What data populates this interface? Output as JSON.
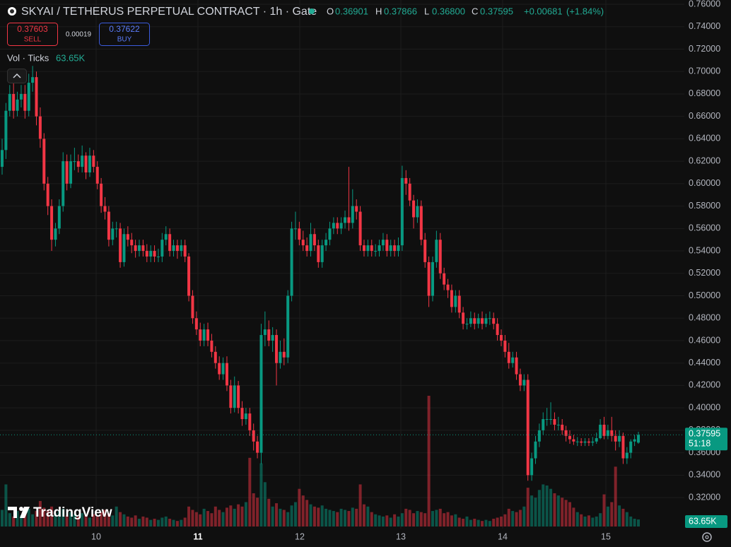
{
  "chart_data": {
    "type": "candlestick",
    "title": "SKYAI / TETHERUS PERPETUAL CONTRACT · 1h · Gate",
    "legend": {
      "labels": [
        "O",
        "H",
        "L",
        "C"
      ],
      "values": [
        0.36901,
        0.37866,
        {
          "value": 0.368,
          "label": "0.36800"
        },
        0.37595
      ],
      "change": {
        "value": 0.00681,
        "label": "+0.00681"
      },
      "change_pct": {
        "value": 1.84,
        "label": "(+1.84%)"
      }
    },
    "order_panel": {
      "sell_price": 0.37603,
      "sell_label": "SELL",
      "spread": 0.00019,
      "buy_price": 0.37622,
      "buy_label": "BUY"
    },
    "volume_title": "Vol · Ticks",
    "branding": "TradingView",
    "last_price": 0.37595,
    "countdown": "51:18",
    "x_labels": [
      "10",
      "11",
      "12",
      "13",
      "14",
      "15"
    ],
    "up_color": "#089981",
    "down_color": "#f23645",
    "volume_up_color": "rgba(8,153,129,0.5)",
    "volume_down_color": "rgba(242,54,69,0.5)",
    "grid": true,
    "ylim": [
      0.2942,
      0.7638
    ],
    "yticks": [
      {
        "value": 0.76,
        "label": "0.76000"
      },
      {
        "value": 0.74,
        "label": "0.74000"
      },
      {
        "value": 0.72,
        "label": "0.72000"
      },
      {
        "value": 0.7,
        "label": "0.70000"
      },
      {
        "value": 0.68,
        "label": "0.68000"
      },
      {
        "value": 0.66,
        "label": "0.66000"
      },
      {
        "value": 0.64,
        "label": "0.64000"
      },
      {
        "value": 0.62,
        "label": "0.62000"
      },
      {
        "value": 0.6,
        "label": "0.60000"
      },
      {
        "value": 0.58,
        "label": "0.58000"
      },
      {
        "value": 0.56,
        "label": "0.56000"
      },
      {
        "value": 0.54,
        "label": "0.54000"
      },
      {
        "value": 0.52,
        "label": "0.52000"
      },
      {
        "value": 0.5,
        "label": "0.50000"
      },
      {
        "value": 0.48,
        "label": "0.48000"
      },
      {
        "value": 0.46,
        "label": "0.46000"
      },
      {
        "value": 0.44,
        "label": "0.44000"
      },
      {
        "value": 0.42,
        "label": "0.42000"
      },
      {
        "value": 0.4,
        "label": "0.40000"
      },
      {
        "value": 0.38,
        "label": "0.38000"
      },
      {
        "value": 0.36,
        "label": "0.36000"
      },
      {
        "value": 0.34,
        "label": "0.34000"
      },
      {
        "value": 0.32,
        "label": "0.32000"
      }
    ],
    "open": [
      0.615,
      0.63,
      0.665,
      0.68,
      0.665,
      0.675,
      0.68,
      0.665,
      0.69,
      0.695,
      0.66,
      0.64,
      0.6,
      0.58,
      0.55,
      0.56,
      0.58,
      0.62,
      0.6,
      0.62,
      0.62,
      0.615,
      0.625,
      0.61,
      0.625,
      0.615,
      0.6,
      0.58,
      0.575,
      0.55,
      0.56,
      0.56,
      0.53,
      0.555,
      0.55,
      0.545,
      0.54,
      0.545,
      0.54,
      0.535,
      0.54,
      0.535,
      0.535,
      0.55,
      0.555,
      0.54,
      0.545,
      0.54,
      0.545,
      0.535,
      0.5,
      0.48,
      0.47,
      0.46,
      0.47,
      0.46,
      0.45,
      0.44,
      0.43,
      0.44,
      0.42,
      0.4,
      0.42,
      0.4,
      0.39,
      0.395,
      0.38,
      0.37,
      0.36,
      0.465,
      0.47,
      0.46,
      0.465,
      0.44,
      0.45,
      0.445,
      0.5,
      0.56,
      0.56,
      0.55,
      0.545,
      0.54,
      0.555,
      0.545,
      0.53,
      0.545,
      0.55,
      0.56,
      0.565,
      0.56,
      0.565,
      0.57,
      0.565,
      0.58,
      0.575,
      0.545,
      0.54,
      0.545,
      0.54,
      0.54,
      0.545,
      0.55,
      0.54,
      0.545,
      0.54,
      0.545,
      0.605,
      0.6,
      0.585,
      0.57,
      0.58,
      0.55,
      0.53,
      0.5,
      0.53,
      0.55,
      0.52,
      0.51,
      0.505,
      0.49,
      0.5,
      0.485,
      0.475,
      0.475,
      0.48,
      0.475,
      0.48,
      0.475,
      0.48,
      0.48,
      0.475,
      0.465,
      0.46,
      0.45,
      0.44,
      0.445,
      0.43,
      0.42,
      0.425,
      0.34,
      0.355,
      0.37,
      0.38,
      0.39,
      0.39,
      0.39,
      0.385,
      0.385,
      0.38,
      0.375,
      0.372,
      0.37,
      0.37,
      0.369,
      0.37,
      0.369,
      0.37,
      0.373,
      0.385,
      0.375,
      0.38,
      0.375,
      0.37,
      0.375,
      0.355,
      0.36,
      0.37,
      0.36901
    ],
    "high": [
      0.64,
      0.672,
      0.688,
      0.69,
      0.682,
      0.688,
      0.688,
      0.698,
      0.705,
      0.7,
      0.668,
      0.645,
      0.606,
      0.586,
      0.565,
      0.586,
      0.628,
      0.626,
      0.626,
      0.632,
      0.626,
      0.634,
      0.628,
      0.632,
      0.63,
      0.62,
      0.605,
      0.588,
      0.58,
      0.566,
      0.566,
      0.565,
      0.56,
      0.562,
      0.556,
      0.55,
      0.55,
      0.55,
      0.546,
      0.545,
      0.545,
      0.542,
      0.556,
      0.562,
      0.56,
      0.55,
      0.55,
      0.55,
      0.55,
      0.538,
      0.505,
      0.486,
      0.476,
      0.475,
      0.476,
      0.466,
      0.455,
      0.446,
      0.445,
      0.446,
      0.425,
      0.428,
      0.424,
      0.406,
      0.4,
      0.4,
      0.386,
      0.375,
      0.475,
      0.486,
      0.478,
      0.472,
      0.47,
      0.46,
      0.462,
      0.505,
      0.566,
      0.575,
      0.566,
      0.558,
      0.552,
      0.565,
      0.56,
      0.55,
      0.55,
      0.556,
      0.566,
      0.57,
      0.57,
      0.57,
      0.576,
      0.615,
      0.595,
      0.586,
      0.58,
      0.55,
      0.55,
      0.55,
      0.546,
      0.55,
      0.556,
      0.555,
      0.55,
      0.55,
      0.552,
      0.616,
      0.612,
      0.605,
      0.59,
      0.586,
      0.585,
      0.556,
      0.535,
      0.535,
      0.558,
      0.556,
      0.525,
      0.515,
      0.51,
      0.505,
      0.505,
      0.49,
      0.48,
      0.486,
      0.485,
      0.484,
      0.486,
      0.484,
      0.486,
      0.485,
      0.48,
      0.47,
      0.465,
      0.458,
      0.45,
      0.45,
      0.435,
      0.43,
      0.43,
      0.36,
      0.375,
      0.386,
      0.396,
      0.4,
      0.405,
      0.396,
      0.392,
      0.39,
      0.384,
      0.38,
      0.376,
      0.374,
      0.373,
      0.373,
      0.373,
      0.374,
      0.378,
      0.39,
      0.392,
      0.385,
      0.392,
      0.38,
      0.38,
      0.378,
      0.365,
      0.372,
      0.376,
      0.37866
    ],
    "low": [
      0.608,
      0.622,
      0.66,
      0.658,
      0.66,
      0.668,
      0.658,
      0.66,
      0.682,
      0.652,
      0.632,
      0.594,
      0.572,
      0.54,
      0.544,
      0.555,
      0.575,
      0.594,
      0.596,
      0.612,
      0.61,
      0.61,
      0.604,
      0.606,
      0.61,
      0.595,
      0.574,
      0.568,
      0.544,
      0.545,
      0.552,
      0.525,
      0.526,
      0.544,
      0.538,
      0.534,
      0.535,
      0.535,
      0.53,
      0.53,
      0.53,
      0.53,
      0.53,
      0.545,
      0.535,
      0.535,
      0.533,
      0.535,
      0.53,
      0.495,
      0.475,
      0.465,
      0.455,
      0.455,
      0.455,
      0.445,
      0.435,
      0.425,
      0.425,
      0.415,
      0.395,
      0.396,
      0.395,
      0.384,
      0.385,
      0.375,
      0.362,
      0.355,
      0.35,
      0.455,
      0.455,
      0.45,
      0.42,
      0.435,
      0.438,
      0.44,
      0.495,
      0.55,
      0.545,
      0.54,
      0.535,
      0.535,
      0.54,
      0.525,
      0.525,
      0.54,
      0.545,
      0.555,
      0.555,
      0.555,
      0.56,
      0.558,
      0.56,
      0.568,
      0.54,
      0.535,
      0.535,
      0.535,
      0.535,
      0.535,
      0.54,
      0.535,
      0.535,
      0.535,
      0.535,
      0.54,
      0.59,
      0.58,
      0.56,
      0.565,
      0.545,
      0.525,
      0.49,
      0.495,
      0.525,
      0.515,
      0.505,
      0.498,
      0.485,
      0.485,
      0.48,
      0.47,
      0.47,
      0.472,
      0.47,
      0.471,
      0.47,
      0.472,
      0.474,
      0.47,
      0.46,
      0.455,
      0.445,
      0.435,
      0.436,
      0.425,
      0.415,
      0.415,
      0.335,
      0.335,
      0.35,
      0.365,
      0.376,
      0.384,
      0.385,
      0.38,
      0.38,
      0.376,
      0.37,
      0.368,
      0.367,
      0.366,
      0.366,
      0.366,
      0.366,
      0.366,
      0.368,
      0.372,
      0.372,
      0.372,
      0.37,
      0.362,
      0.365,
      0.35,
      0.35,
      0.355,
      0.366,
      0.368
    ],
    "close": [
      0.63,
      0.665,
      0.68,
      0.665,
      0.675,
      0.68,
      0.665,
      0.69,
      0.695,
      0.66,
      0.64,
      0.6,
      0.58,
      0.55,
      0.56,
      0.58,
      0.62,
      0.6,
      0.62,
      0.62,
      0.615,
      0.625,
      0.61,
      0.625,
      0.615,
      0.6,
      0.58,
      0.575,
      0.55,
      0.56,
      0.56,
      0.53,
      0.555,
      0.55,
      0.545,
      0.54,
      0.545,
      0.54,
      0.535,
      0.54,
      0.535,
      0.535,
      0.55,
      0.555,
      0.54,
      0.545,
      0.54,
      0.545,
      0.535,
      0.5,
      0.48,
      0.47,
      0.46,
      0.47,
      0.46,
      0.45,
      0.44,
      0.43,
      0.44,
      0.42,
      0.4,
      0.42,
      0.4,
      0.39,
      0.395,
      0.38,
      0.37,
      0.36,
      0.465,
      0.47,
      0.46,
      0.465,
      0.44,
      0.45,
      0.445,
      0.5,
      0.56,
      0.56,
      0.55,
      0.545,
      0.54,
      0.555,
      0.545,
      0.53,
      0.545,
      0.55,
      0.56,
      0.565,
      0.56,
      0.565,
      0.57,
      0.565,
      0.58,
      0.575,
      0.545,
      0.54,
      0.545,
      0.54,
      0.54,
      0.545,
      0.55,
      0.54,
      0.545,
      0.54,
      0.545,
      0.605,
      0.6,
      0.585,
      0.57,
      0.58,
      0.55,
      0.53,
      0.5,
      0.53,
      0.55,
      0.52,
      0.51,
      0.505,
      0.49,
      0.5,
      0.485,
      0.475,
      0.475,
      0.48,
      0.475,
      0.48,
      0.475,
      0.48,
      0.48,
      0.475,
      0.465,
      0.46,
      0.45,
      0.44,
      0.445,
      0.43,
      0.42,
      0.425,
      0.34,
      0.355,
      0.37,
      0.38,
      0.39,
      0.39,
      0.39,
      0.385,
      0.385,
      0.38,
      0.375,
      0.372,
      0.37,
      0.37,
      0.369,
      0.37,
      0.369,
      0.37,
      0.373,
      0.385,
      0.375,
      0.38,
      0.375,
      0.37,
      0.375,
      0.355,
      0.36,
      0.37,
      0.372,
      0.37595
    ],
    "volume": {
      "values": [
        150000,
        380000,
        120000,
        90000,
        140000,
        100000,
        130000,
        160000,
        110000,
        140000,
        230000,
        170000,
        150000,
        180000,
        120000,
        140000,
        160000,
        100000,
        130000,
        110000,
        90000,
        120000,
        100000,
        80000,
        110000,
        90000,
        130000,
        150000,
        120000,
        100000,
        180000,
        130000,
        110000,
        90000,
        80000,
        100000,
        70000,
        90000,
        80000,
        60000,
        70000,
        60000,
        80000,
        90000,
        70000,
        60000,
        50000,
        60000,
        80000,
        180000,
        150000,
        130000,
        110000,
        160000,
        140000,
        120000,
        180000,
        150000,
        130000,
        170000,
        190000,
        160000,
        200000,
        180000,
        220000,
        620000,
        300000,
        260000,
        570000,
        400000,
        250000,
        180000,
        210000,
        160000,
        150000,
        130000,
        190000,
        220000,
        340000,
        280000,
        240000,
        200000,
        180000,
        170000,
        190000,
        160000,
        150000,
        140000,
        130000,
        160000,
        150000,
        140000,
        170000,
        160000,
        380000,
        200000,
        180000,
        130000,
        110000,
        100000,
        90000,
        100000,
        80000,
        110000,
        90000,
        120000,
        160000,
        150000,
        120000,
        140000,
        130000,
        120000,
        1180000,
        140000,
        150000,
        160000,
        120000,
        130000,
        100000,
        110000,
        80000,
        70000,
        90000,
        60000,
        70000,
        60000,
        50000,
        60000,
        50000,
        70000,
        80000,
        90000,
        110000,
        160000,
        140000,
        130000,
        150000,
        180000,
        350000,
        280000,
        260000,
        330000,
        380000,
        370000,
        340000,
        300000,
        280000,
        260000,
        240000,
        220000,
        170000,
        130000,
        110000,
        90000,
        100000,
        80000,
        90000,
        120000,
        290000,
        180000,
        220000,
        540000,
        190000,
        160000,
        130000,
        90000,
        70000,
        63650
      ],
      "value_labels": [
        null,
        null,
        null,
        null,
        null,
        null,
        null,
        null,
        null,
        null,
        null,
        null,
        null,
        null,
        null,
        null,
        null,
        null,
        null,
        null,
        null,
        null,
        null,
        null,
        null,
        null,
        null,
        null,
        null,
        null,
        null,
        null,
        null,
        null,
        null,
        null,
        null,
        null,
        null,
        null,
        null,
        null,
        null,
        null,
        null,
        null,
        null,
        null,
        null,
        null,
        null,
        null,
        null,
        null,
        null,
        null,
        null,
        null,
        null,
        null,
        null,
        null,
        null,
        null,
        null,
        null,
        null,
        null,
        null,
        null,
        null,
        null,
        null,
        null,
        null,
        null,
        null,
        null,
        null,
        null,
        null,
        null,
        null,
        null,
        null,
        null,
        null,
        null,
        null,
        null,
        null,
        null,
        null,
        null,
        null,
        null,
        null,
        null,
        null,
        null,
        null,
        null,
        null,
        null,
        null,
        null,
        null,
        null,
        null,
        null,
        null,
        null,
        null,
        null,
        null,
        null,
        null,
        null,
        null,
        null,
        null,
        null,
        null,
        null,
        null,
        null,
        null,
        null,
        null,
        null,
        null,
        null,
        null,
        null,
        null,
        null,
        null,
        null,
        null,
        null,
        null,
        null,
        null,
        null,
        null,
        null,
        null,
        null,
        null,
        null,
        null,
        null,
        null,
        null,
        null,
        null,
        null,
        null,
        null,
        null,
        null,
        null,
        null,
        null,
        null,
        null,
        null,
        "63.65K"
      ]
    }
  }
}
